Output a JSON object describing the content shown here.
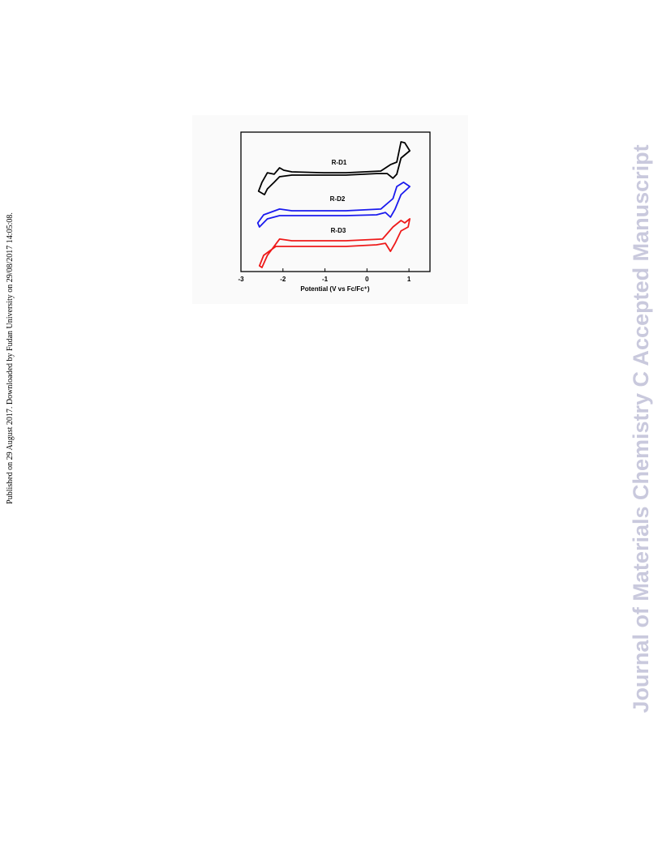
{
  "side_note": "Published on 29 August 2017. Downloaded by Fudan University on 29/08/2017 14:05:08.",
  "watermark": "Journal of Materials Chemistry C Accepted Manuscript",
  "chart_data": {
    "type": "line",
    "xlabel": "Potential (V vs Fc/Fc⁺)",
    "xlim": [
      -3,
      1.5
    ],
    "xticks": [
      -3,
      -2,
      -1,
      0,
      1
    ],
    "ylim": [
      0,
      10
    ],
    "series": [
      {
        "name": "R-D1",
        "color": "#000000",
        "x": [
          -0.5,
          0.33,
          0.56,
          0.71,
          0.81,
          0.9,
          1.02,
          0.81,
          0.71,
          0.62,
          0.48,
          0.23,
          -0.5,
          -1.79,
          -2.08,
          -2.21,
          -2.37,
          -2.44,
          -2.58,
          -2.5,
          -2.37,
          -2.21,
          -2.08,
          -1.98,
          -1.79,
          -1.02,
          -0.5
        ],
        "values": [
          7.09,
          7.21,
          7.67,
          7.85,
          9.3,
          9.24,
          8.66,
          8.14,
          6.98,
          6.69,
          7.03,
          7.03,
          6.92,
          6.92,
          6.8,
          6.4,
          5.93,
          5.52,
          5.76,
          6.4,
          7.09,
          6.98,
          7.44,
          7.27,
          7.15,
          7.09,
          7.09
        ]
      },
      {
        "name": "R-D2",
        "color": "#1a1aee",
        "x": [
          -0.5,
          0.33,
          0.62,
          0.71,
          0.87,
          1.02,
          0.81,
          0.67,
          0.56,
          0.44,
          0.23,
          -0.5,
          -2.08,
          -2.37,
          -2.56,
          -2.6,
          -2.46,
          -2.08,
          -1.79,
          -0.5
        ],
        "values": [
          4.36,
          4.48,
          5.23,
          6.1,
          6.4,
          6.1,
          5.52,
          4.48,
          3.9,
          4.24,
          4.07,
          4.01,
          4.01,
          3.78,
          3.2,
          3.49,
          4.07,
          4.48,
          4.36,
          4.36
        ]
      },
      {
        "name": "R-D3",
        "color": "#ee1a1a",
        "x": [
          -0.5,
          0.37,
          0.62,
          0.81,
          0.9,
          1.02,
          0.98,
          0.81,
          0.67,
          0.56,
          0.44,
          0.23,
          -0.5,
          -2.17,
          -2.46,
          -2.56,
          -2.5,
          -2.37,
          -2.08,
          -1.79,
          -0.5
        ],
        "values": [
          2.21,
          2.33,
          3.2,
          3.66,
          3.49,
          3.78,
          3.2,
          2.91,
          2.03,
          1.45,
          2.03,
          1.92,
          1.8,
          1.8,
          1.16,
          0.41,
          0.29,
          1.16,
          2.33,
          2.21,
          2.21
        ]
      }
    ]
  }
}
